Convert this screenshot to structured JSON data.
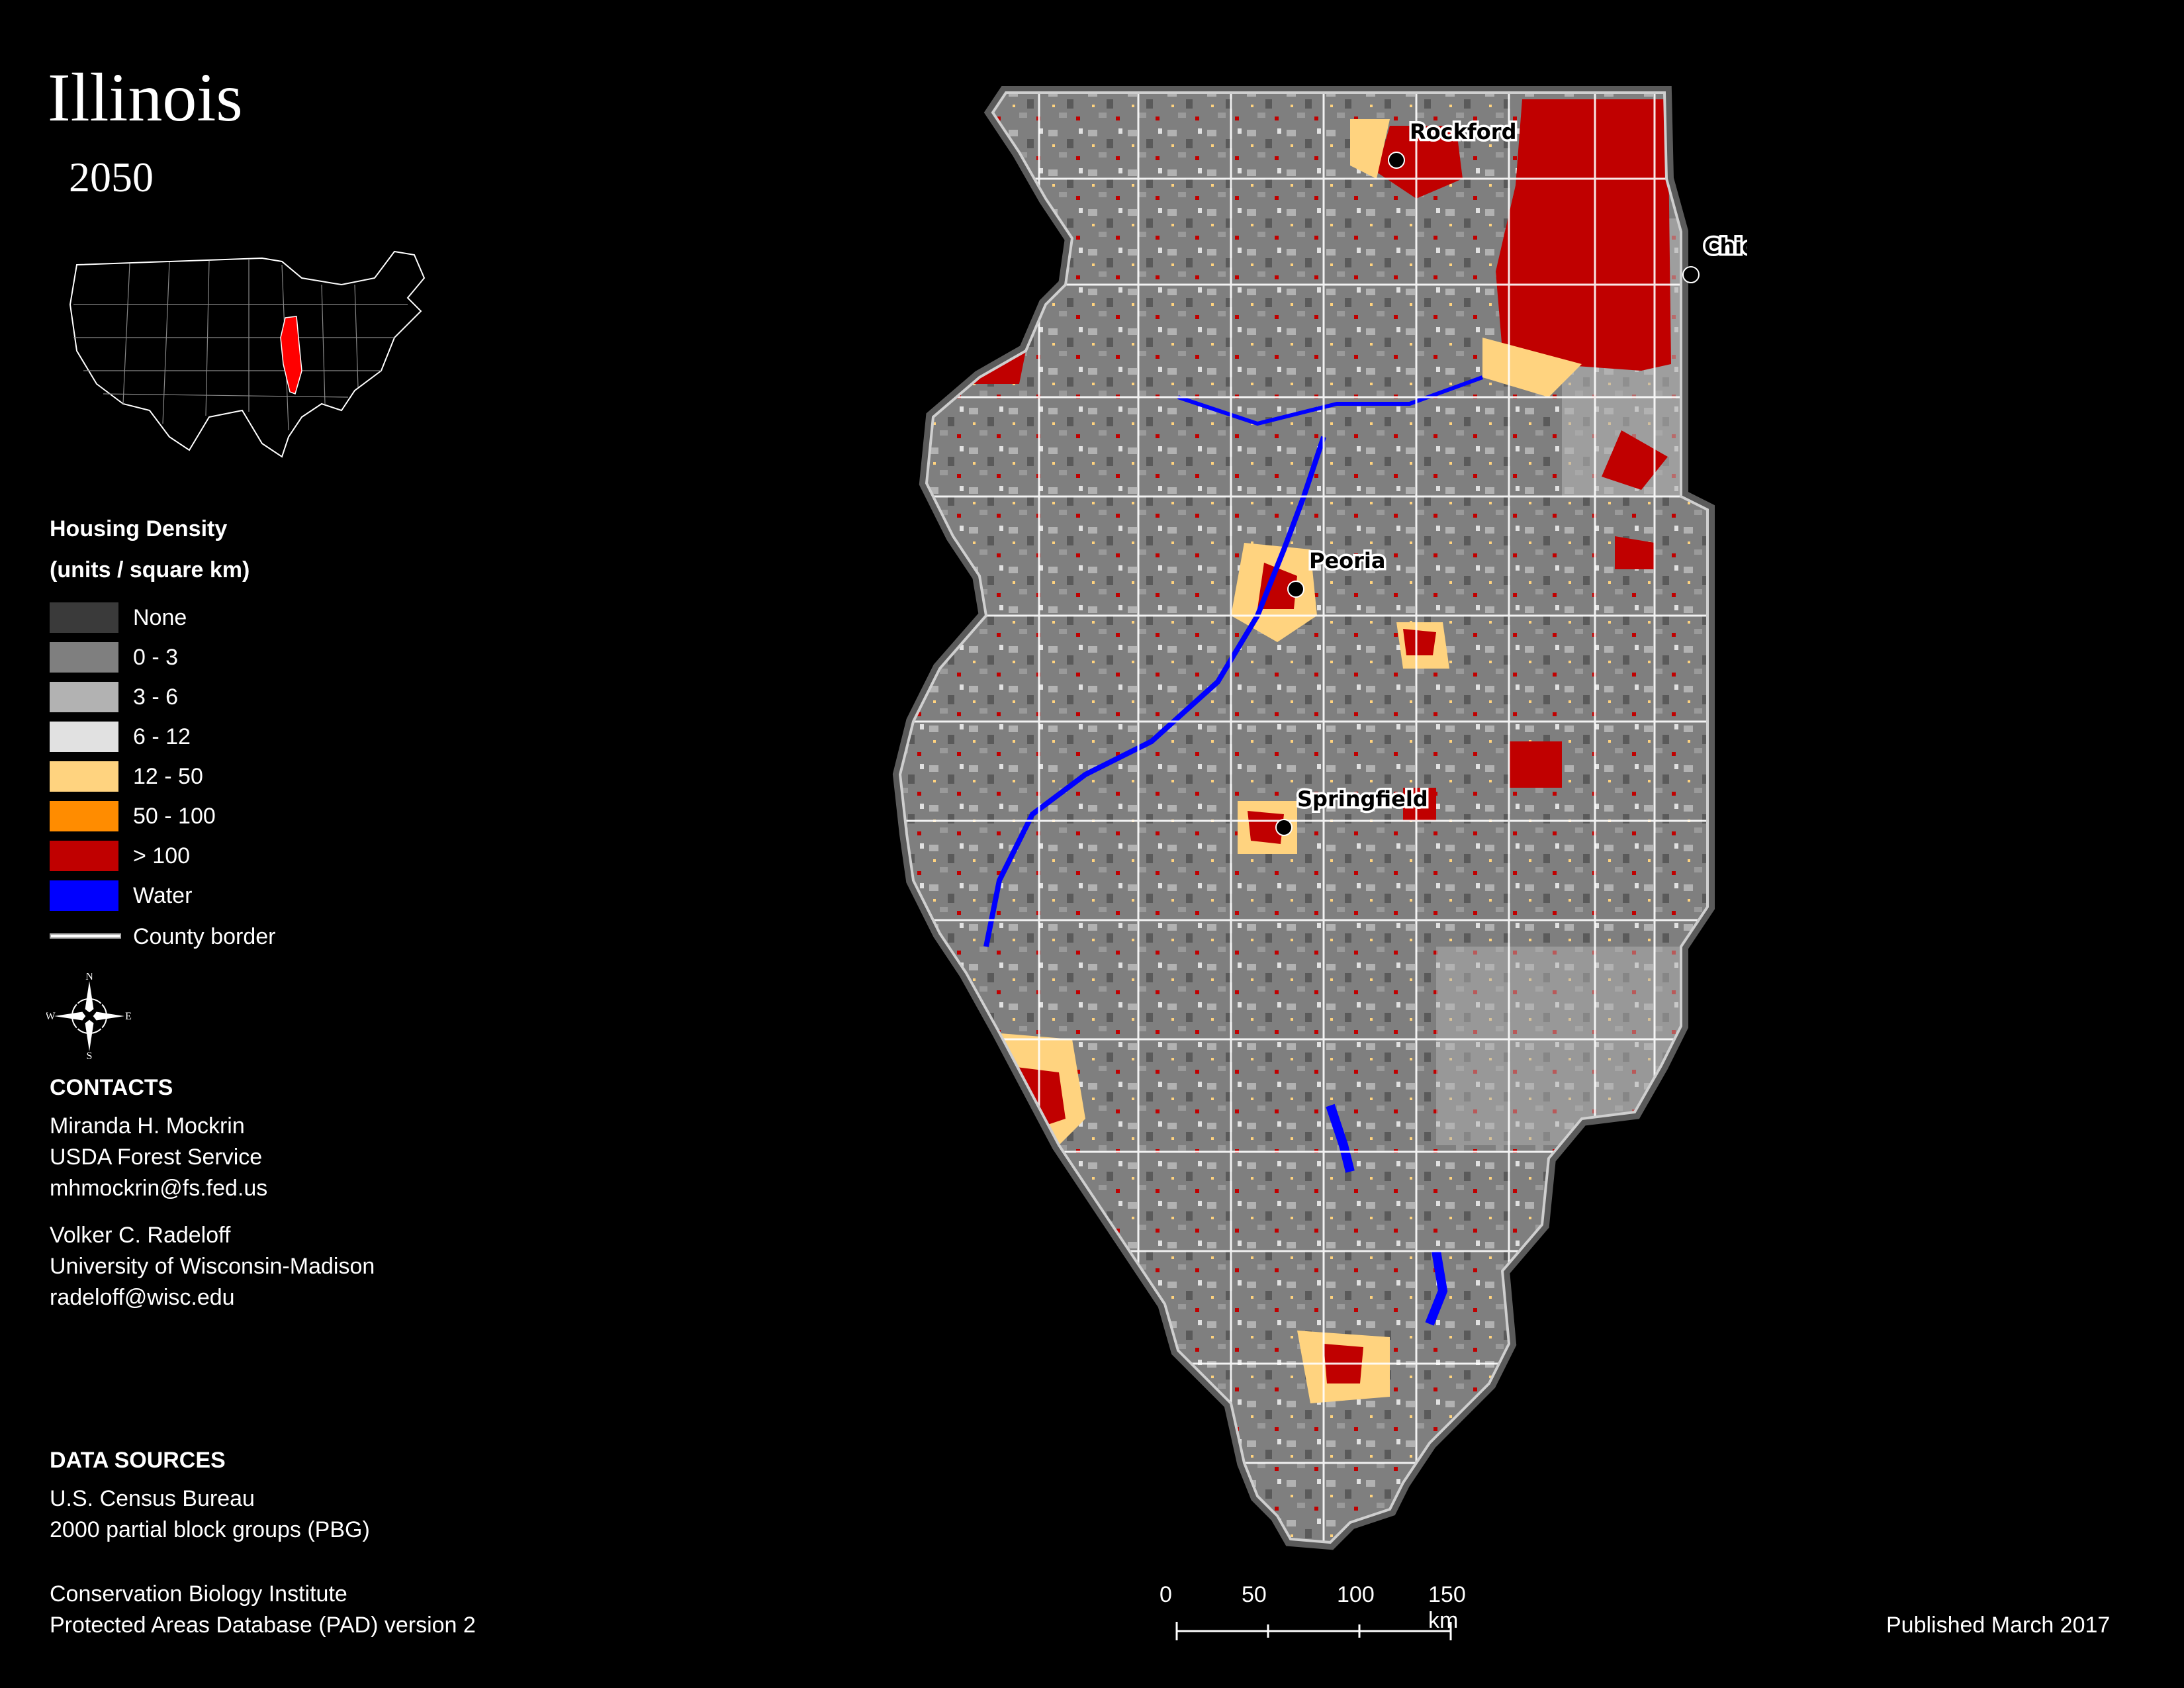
{
  "title": "Illinois",
  "subtitle": "2050",
  "inset": {
    "highlight_color": "#ff0000"
  },
  "legend": {
    "title_line1": "Housing Density",
    "title_line2": "(units / square km)",
    "items": [
      {
        "label": "None",
        "color": "#3a3a3a"
      },
      {
        "label": "0 - 3",
        "color": "#7f7f7f"
      },
      {
        "label": "3 - 6",
        "color": "#b2b2b2"
      },
      {
        "label": "6 - 12",
        "color": "#e1e1e1"
      },
      {
        "label": "12 - 50",
        "color": "#ffd37f"
      },
      {
        "label": "50 - 100",
        "color": "#ff8c00"
      },
      {
        "label": "> 100",
        "color": "#c00000"
      },
      {
        "label": "Water",
        "color": "#0000ff"
      }
    ],
    "county_border_label": "County border"
  },
  "compass": {
    "n": "N",
    "s": "S",
    "e": "E",
    "w": "W"
  },
  "contacts": {
    "heading": "CONTACTS",
    "people": [
      {
        "name": "Miranda H. Mockrin",
        "org": "USDA Forest Service",
        "email": "mhmockrin@fs.fed.us"
      },
      {
        "name": "Volker C. Radeloff",
        "org": "University of Wisconsin-Madison",
        "email": "radeloff@wisc.edu"
      }
    ]
  },
  "data_sources": {
    "heading": "DATA SOURCES",
    "source1_line1": "U.S. Census Bureau",
    "source1_line2": "2000 partial block groups (PBG)",
    "source2_line1": "Conservation Biology Institute",
    "source2_line2": "Protected Areas Database (PAD) version 2"
  },
  "cities": [
    {
      "name": "Rockford"
    },
    {
      "name": "Chicago"
    },
    {
      "name": "Peoria"
    },
    {
      "name": "Springfield"
    }
  ],
  "scale": {
    "ticks": [
      "0",
      "50",
      "100",
      "150 km"
    ]
  },
  "published": "Published March 2017"
}
